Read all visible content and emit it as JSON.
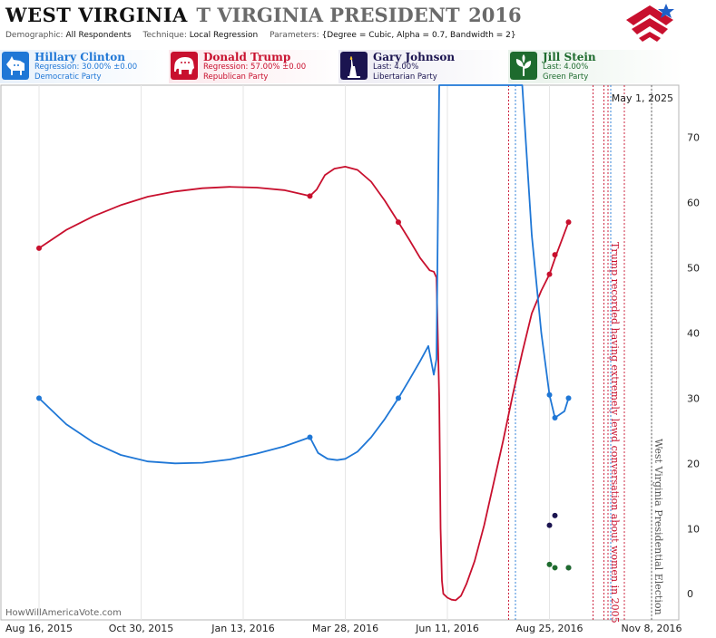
{
  "header": {
    "state": "WEST VIRGINIA",
    "title_ghost": "T VIRGINIA PRESIDENT",
    "year": "2016",
    "demographic_label": "Demographic:",
    "demographic_value": "All Respondents",
    "technique_label": "Technique:",
    "technique_value": "Local Regression",
    "parameters_label": "Parameters:",
    "parameters_value": "{Degree = Cubic, Alpha = 0.7, Bandwidth = 2}",
    "logo_icon": "stars-stripes-logo-icon"
  },
  "candidates": [
    {
      "name": "Hillary Clinton",
      "line2": "Regression: 30.00% ±0.00",
      "line3": "Democratic Party",
      "color": "#1f77d6",
      "bg": "#e8f1fb",
      "icon": "donkey-icon"
    },
    {
      "name": "Donald Trump",
      "line2": "Regression: 57.00% ±0.00",
      "line3": "Republican Party",
      "color": "#c8102e",
      "bg": "#fbe8ec",
      "icon": "elephant-icon"
    },
    {
      "name": "Gary Johnson",
      "line2": "Last: 4.00%",
      "line3": "Libertarian Party",
      "color": "#1b1450",
      "bg": "#ecebf3",
      "icon": "liberty-torch-icon"
    },
    {
      "name": "Jill Stein",
      "line2": "Last: 4.00%",
      "line3": "Green Party",
      "color": "#1e6b2e",
      "bg": "#e8f2ea",
      "icon": "leaf-icon"
    }
  ],
  "watermark": "HowWillAmericaVote.com",
  "current_date": "May 1, 2025",
  "chart_data": {
    "type": "line",
    "x_axis": {
      "ticks": [
        {
          "label": "Aug 16, 2015",
          "date": "2015-08-16"
        },
        {
          "label": "Oct 30, 2015",
          "date": "2015-10-30"
        },
        {
          "label": "Jan 13, 2016",
          "date": "2016-01-13"
        },
        {
          "label": "Mar 28, 2016",
          "date": "2016-03-28"
        },
        {
          "label": "Jun 11, 2016",
          "date": "2016-06-11"
        },
        {
          "label": "Aug 25, 2016",
          "date": "2016-08-25"
        },
        {
          "label": "Nov 8, 2016",
          "date": "2016-11-08"
        }
      ],
      "range": [
        "2015-07-19",
        "2016-11-28"
      ]
    },
    "y_axis": {
      "ticks": [
        0,
        10,
        20,
        30,
        40,
        50,
        60,
        70
      ],
      "range": [
        -4,
        78
      ],
      "position": "right"
    },
    "grid": "vertical",
    "series": [
      {
        "name": "Donald Trump",
        "color": "#c8102e",
        "curve": [
          [
            "2015-08-16",
            53
          ],
          [
            "2015-09-05",
            55.8
          ],
          [
            "2015-09-25",
            57.9
          ],
          [
            "2015-10-15",
            59.6
          ],
          [
            "2015-11-04",
            60.9
          ],
          [
            "2015-11-24",
            61.7
          ],
          [
            "2015-12-14",
            62.2
          ],
          [
            "2016-01-03",
            62.4
          ],
          [
            "2016-01-23",
            62.3
          ],
          [
            "2016-02-12",
            61.9
          ],
          [
            "2016-03-02",
            61.0
          ],
          [
            "2016-03-07",
            62.0
          ],
          [
            "2016-03-13",
            64.2
          ],
          [
            "2016-03-20",
            65.2
          ],
          [
            "2016-03-28",
            65.5
          ],
          [
            "2016-04-06",
            65.0
          ],
          [
            "2016-04-16",
            63.2
          ],
          [
            "2016-04-26",
            60.3
          ],
          [
            "2016-05-06",
            57.0
          ],
          [
            "2016-05-14",
            54.3
          ],
          [
            "2016-05-22",
            51.5
          ],
          [
            "2016-05-29",
            49.6
          ],
          [
            "2016-06-01",
            49.4
          ],
          [
            "2016-06-03",
            48.5
          ],
          [
            "2016-06-05",
            30
          ],
          [
            "2016-06-06",
            10
          ],
          [
            "2016-06-07",
            2
          ],
          [
            "2016-06-08",
            0
          ],
          [
            "2016-06-11",
            -0.6
          ],
          [
            "2016-06-14",
            -0.9
          ],
          [
            "2016-06-17",
            -1.0
          ],
          [
            "2016-06-21",
            -0.3
          ],
          [
            "2016-06-25",
            1.5
          ],
          [
            "2016-07-01",
            5.0
          ],
          [
            "2016-07-08",
            10.5
          ],
          [
            "2016-07-15",
            17.0
          ],
          [
            "2016-07-22",
            23.5
          ],
          [
            "2016-07-29",
            30.5
          ],
          [
            "2016-08-05",
            37.0
          ],
          [
            "2016-08-12",
            43.0
          ],
          [
            "2016-08-19",
            46.5
          ],
          [
            "2016-08-25",
            49.0
          ],
          [
            "2016-08-30",
            52.0
          ],
          [
            "2016-09-08",
            57.0
          ]
        ],
        "points": [
          [
            "2015-08-16",
            53
          ],
          [
            "2016-03-02",
            61
          ],
          [
            "2016-05-06",
            57
          ],
          [
            "2016-08-25",
            49
          ],
          [
            "2016-08-29",
            52
          ],
          [
            "2016-09-08",
            57
          ]
        ]
      },
      {
        "name": "Hillary Clinton",
        "color": "#1f77d6",
        "curve": [
          [
            "2015-08-16",
            30
          ],
          [
            "2015-09-05",
            26.0
          ],
          [
            "2015-09-25",
            23.2
          ],
          [
            "2015-10-15",
            21.3
          ],
          [
            "2015-11-04",
            20.3
          ],
          [
            "2015-11-24",
            20.0
          ],
          [
            "2015-12-14",
            20.1
          ],
          [
            "2016-01-03",
            20.6
          ],
          [
            "2016-01-23",
            21.5
          ],
          [
            "2016-02-12",
            22.6
          ],
          [
            "2016-03-02",
            24.0
          ],
          [
            "2016-03-08",
            21.6
          ],
          [
            "2016-03-15",
            20.7
          ],
          [
            "2016-03-22",
            20.5
          ],
          [
            "2016-03-28",
            20.7
          ],
          [
            "2016-04-06",
            21.8
          ],
          [
            "2016-04-16",
            24.0
          ],
          [
            "2016-04-26",
            26.8
          ],
          [
            "2016-05-06",
            30.0
          ],
          [
            "2016-05-14",
            32.8
          ],
          [
            "2016-05-22",
            35.7
          ],
          [
            "2016-05-28",
            38.0
          ],
          [
            "2016-06-01",
            33.6
          ],
          [
            "2016-06-03",
            36
          ],
          [
            "2016-06-05",
            78
          ],
          [
            "2016-08-05",
            78
          ],
          [
            "2016-08-12",
            55
          ],
          [
            "2016-08-19",
            40.0
          ],
          [
            "2016-08-25",
            30.5
          ],
          [
            "2016-08-29",
            27.0
          ],
          [
            "2016-09-05",
            28.0
          ],
          [
            "2016-09-08",
            30.0
          ]
        ],
        "points": [
          [
            "2015-08-16",
            30
          ],
          [
            "2016-03-02",
            24
          ],
          [
            "2016-05-06",
            30
          ],
          [
            "2016-08-25",
            30.5
          ],
          [
            "2016-08-29",
            27
          ],
          [
            "2016-09-08",
            30
          ]
        ]
      },
      {
        "name": "Gary Johnson",
        "color": "#1b1450",
        "points": [
          [
            "2016-08-25",
            10.5
          ],
          [
            "2016-08-29",
            12
          ],
          [
            "2016-09-08",
            4
          ]
        ]
      },
      {
        "name": "Jill Stein",
        "color": "#1e6b2e",
        "points": [
          [
            "2016-08-25",
            4.5
          ],
          [
            "2016-08-29",
            4
          ],
          [
            "2016-09-08",
            4
          ]
        ]
      }
    ],
    "event_lines": [
      {
        "date": "2016-07-26",
        "color": "#c8102e"
      },
      {
        "date": "2016-07-31",
        "color": "#1f77d6"
      },
      {
        "date": "2016-09-26",
        "color": "#c8102e"
      },
      {
        "date": "2016-10-04",
        "color": "#c8102e"
      },
      {
        "date": "2016-10-07",
        "color": "#c8102e",
        "label": "Trump recorded having extremely lewd conversation about women in 2005"
      },
      {
        "date": "2016-10-09",
        "color": "#1f77d6"
      },
      {
        "date": "2016-10-19",
        "color": "#c8102e"
      },
      {
        "date": "2016-11-08",
        "color": "#555555",
        "label": "West Virginia Presidential Election"
      }
    ]
  }
}
